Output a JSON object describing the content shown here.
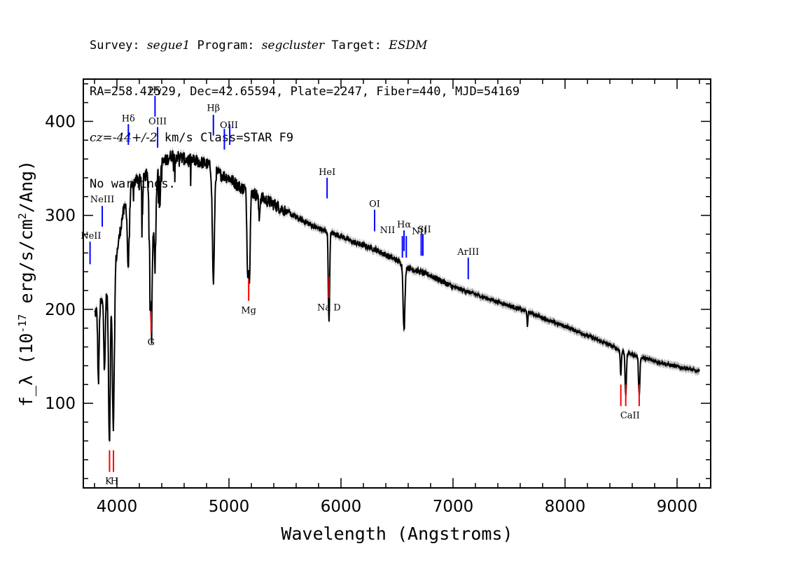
{
  "header": {
    "survey_label": "Survey:",
    "survey": "segue1",
    "program_label": "Program:",
    "program": "segcluster",
    "target_label": "Target:",
    "target": "ESDM",
    "line2": "RA=258.42529, Dec=42.65594, Plate=2247, Fiber=440, MJD=54169",
    "cz_label": "cz=",
    "cz_value": "-44+/-2",
    "cz_unit": "km/s Class=STAR F9",
    "warnings": "No warnings."
  },
  "colors": {
    "spectrum": "#000000",
    "error_band": "#b4b4b4",
    "emission_line": "#0000ff",
    "absorption_line": "#ff0000"
  },
  "chart_data": {
    "type": "line",
    "xlabel": "Wavelength (Angstroms)",
    "ylabel": "f_λ (10^-17 erg/s/cm^2/Ang)",
    "xlim": [
      3700,
      9300
    ],
    "ylim": [
      10,
      445
    ],
    "xticks": [
      4000,
      5000,
      6000,
      7000,
      8000,
      9000
    ],
    "yticks": [
      100,
      200,
      300,
      400
    ],
    "x_minor_step": 200,
    "y_minor_step": 20,
    "grid": false,
    "continuum": [
      [
        3800,
        195
      ],
      [
        3850,
        205
      ],
      [
        3900,
        215
      ],
      [
        3950,
        240
      ],
      [
        4000,
        260
      ],
      [
        4050,
        300
      ],
      [
        4100,
        320
      ],
      [
        4150,
        335
      ],
      [
        4200,
        340
      ],
      [
        4300,
        345
      ],
      [
        4400,
        355
      ],
      [
        4500,
        365
      ],
      [
        4600,
        360
      ],
      [
        4700,
        358
      ],
      [
        4800,
        355
      ],
      [
        4900,
        345
      ],
      [
        5000,
        340
      ],
      [
        5100,
        330
      ],
      [
        5200,
        325
      ],
      [
        5300,
        318
      ],
      [
        5400,
        312
      ],
      [
        5500,
        305
      ],
      [
        5600,
        298
      ],
      [
        5700,
        292
      ],
      [
        5800,
        286
      ],
      [
        5900,
        282
      ],
      [
        6000,
        278
      ],
      [
        6100,
        272
      ],
      [
        6200,
        268
      ],
      [
        6300,
        264
      ],
      [
        6400,
        258
      ],
      [
        6500,
        252
      ],
      [
        6600,
        244
      ],
      [
        6700,
        240
      ],
      [
        6800,
        236
      ],
      [
        6900,
        230
      ],
      [
        7000,
        224
      ],
      [
        7100,
        220
      ],
      [
        7200,
        216
      ],
      [
        7300,
        212
      ],
      [
        7400,
        208
      ],
      [
        7500,
        204
      ],
      [
        7600,
        200
      ],
      [
        7700,
        196
      ],
      [
        7800,
        191
      ],
      [
        7900,
        186
      ],
      [
        8000,
        182
      ],
      [
        8100,
        177
      ],
      [
        8200,
        172
      ],
      [
        8300,
        167
      ],
      [
        8400,
        162
      ],
      [
        8500,
        156
      ],
      [
        8600,
        152
      ],
      [
        8700,
        148
      ],
      [
        8800,
        145
      ],
      [
        8900,
        142
      ],
      [
        9000,
        139
      ],
      [
        9100,
        137
      ],
      [
        9200,
        133
      ]
    ],
    "absorption_features": [
      {
        "x": 3835,
        "depth": 80,
        "width": 6
      },
      {
        "x": 3889,
        "depth": 70,
        "width": 7
      },
      {
        "x": 3933,
        "depth": 175,
        "width": 8
      },
      {
        "x": 3968,
        "depth": 170,
        "width": 9
      },
      {
        "x": 4101,
        "depth": 75,
        "width": 8
      },
      {
        "x": 4227,
        "depth": 40,
        "width": 5
      },
      {
        "x": 4305,
        "depth": 160,
        "width": 12
      },
      {
        "x": 4340,
        "depth": 90,
        "width": 9
      },
      {
        "x": 4383,
        "depth": 45,
        "width": 5
      },
      {
        "x": 4861,
        "depth": 120,
        "width": 9
      },
      {
        "x": 5167,
        "depth": 80,
        "width": 7
      },
      {
        "x": 5183,
        "depth": 85,
        "width": 7
      },
      {
        "x": 5270,
        "depth": 25,
        "width": 5
      },
      {
        "x": 5890,
        "depth": 60,
        "width": 5
      },
      {
        "x": 5896,
        "depth": 55,
        "width": 5
      },
      {
        "x": 6563,
        "depth": 70,
        "width": 8
      },
      {
        "x": 7665,
        "depth": 15,
        "width": 4
      },
      {
        "x": 8498,
        "depth": 25,
        "width": 5
      },
      {
        "x": 8542,
        "depth": 45,
        "width": 6
      },
      {
        "x": 8662,
        "depth": 40,
        "width": 6
      }
    ],
    "line_markers": [
      {
        "label": "NeII",
        "x": 3760,
        "y0": 248,
        "y1": 272,
        "type": "emission",
        "lx": 3768,
        "ly": 275
      },
      {
        "label": "NeIII",
        "x": 3869,
        "y0": 288,
        "y1": 310,
        "type": "emission",
        "lx": 3869,
        "ly": 314
      },
      {
        "label": "Hδ",
        "x": 4102,
        "y0": 375,
        "y1": 397,
        "type": "emission",
        "lx": 4102,
        "ly": 400
      },
      {
        "label": "Hγ",
        "x": 4340,
        "y0": 405,
        "y1": 427,
        "type": "emission",
        "lx": 4340,
        "ly": 430
      },
      {
        "label": "OIII",
        "x": 4363,
        "y0": 372,
        "y1": 394,
        "type": "emission",
        "lx": 4363,
        "ly": 397
      },
      {
        "label": "Hβ",
        "x": 4861,
        "y0": 385,
        "y1": 407,
        "type": "emission",
        "lx": 4861,
        "ly": 411
      },
      {
        "label": "OIII",
        "x": 4959,
        "y0": 370,
        "y1": 392,
        "type": "emission",
        "lx": 5000,
        "ly": 393
      },
      {
        "label": "",
        "x": 5007,
        "y0": 375,
        "y1": 397,
        "type": "emission"
      },
      {
        "label": "HeI",
        "x": 5876,
        "y0": 318,
        "y1": 340,
        "type": "emission",
        "lx": 5876,
        "ly": 343
      },
      {
        "label": "OI",
        "x": 6300,
        "y0": 283,
        "y1": 306,
        "type": "emission",
        "lx": 6300,
        "ly": 309
      },
      {
        "label": "NII",
        "x": 6548,
        "y0": 255,
        "y1": 278,
        "type": "emission",
        "lx": 6415,
        "ly": 281
      },
      {
        "label": "Hα",
        "x": 6563,
        "y0": 262,
        "y1": 284,
        "type": "emission",
        "lx": 6563,
        "ly": 287
      },
      {
        "label": "NII",
        "x": 6583,
        "y0": 255,
        "y1": 278,
        "type": "emission",
        "lx": 6700,
        "ly": 280
      },
      {
        "label": "SII",
        "x": 6716,
        "y0": 257,
        "y1": 280,
        "type": "emission",
        "lx": 6745,
        "ly": 282
      },
      {
        "label": "",
        "x": 6731,
        "y0": 257,
        "y1": 280,
        "type": "emission"
      },
      {
        "label": "ArIII",
        "x": 7136,
        "y0": 232,
        "y1": 255,
        "type": "emission",
        "lx": 7136,
        "ly": 258
      },
      {
        "label": "K",
        "x": 3934,
        "y0": 27,
        "y1": 50,
        "type": "absorption",
        "lx": 3925,
        "ly": 14
      },
      {
        "label": "H",
        "x": 3969,
        "y0": 27,
        "y1": 50,
        "type": "absorption",
        "lx": 3978,
        "ly": 14
      },
      {
        "label": "G",
        "x": 4305,
        "y0": 175,
        "y1": 198,
        "type": "absorption",
        "lx": 4305,
        "ly": 162
      },
      {
        "label": "Mg",
        "x": 5176,
        "y0": 209,
        "y1": 232,
        "type": "absorption",
        "lx": 5176,
        "ly": 196
      },
      {
        "label": "Na D",
        "x": 5893,
        "y0": 212,
        "y1": 235,
        "type": "absorption",
        "lx": 5893,
        "ly": 199
      },
      {
        "label": "CaII",
        "x": 8498,
        "y0": 97,
        "y1": 120,
        "type": "absorption",
        "lx": 8580,
        "ly": 84
      },
      {
        "label": "",
        "x": 8542,
        "y0": 97,
        "y1": 120,
        "type": "absorption"
      },
      {
        "label": "",
        "x": 8662,
        "y0": 97,
        "y1": 120,
        "type": "absorption"
      }
    ]
  }
}
